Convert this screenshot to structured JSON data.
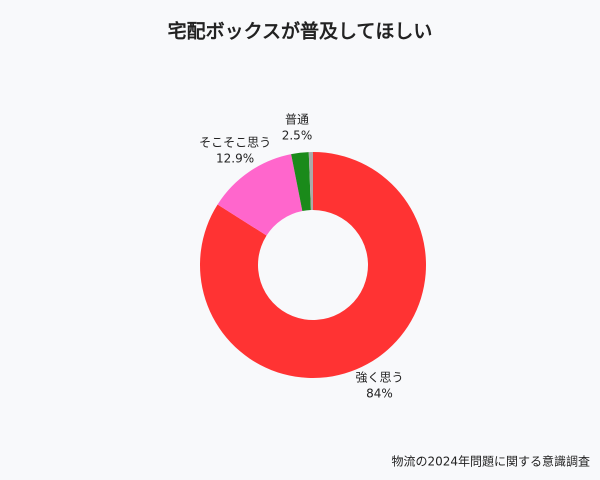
{
  "chart_data": {
    "type": "donut",
    "title": "宅配ボックスが普及してほしい",
    "categories": [
      "強く思う",
      "そこそこ思う",
      "普通",
      null
    ],
    "values": [
      84,
      12.9,
      2.5,
      0.6
    ],
    "value_labels": [
      "84%",
      "12.9%",
      "2.5%",
      null
    ],
    "colors": [
      "#ff3333",
      "#ff66cc",
      "#1a8a1a",
      "#aaaaaa"
    ],
    "source": "物流の2024年問題に関する意識調査"
  }
}
